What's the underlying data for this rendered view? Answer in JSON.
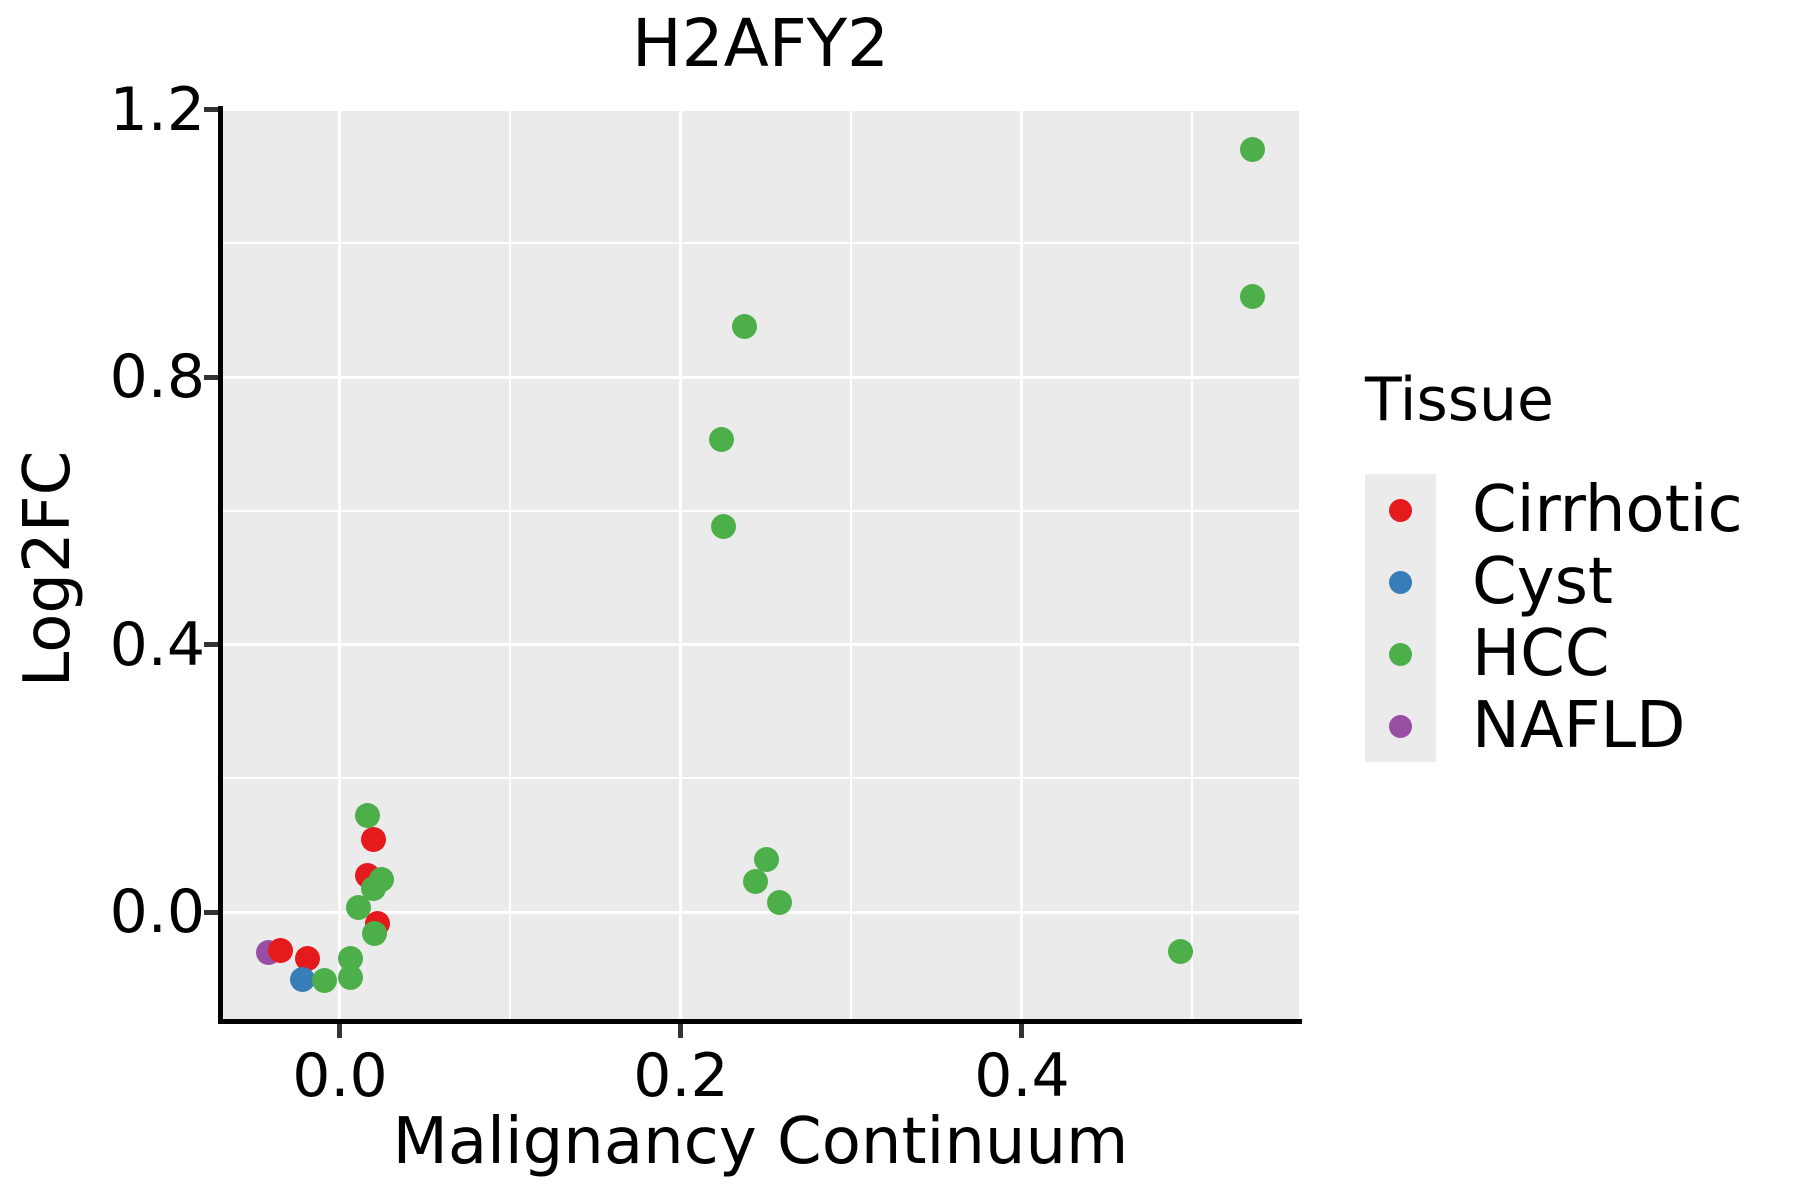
{
  "title": "H2AFY2",
  "chart_data": {
    "type": "scatter",
    "title": "H2AFY2",
    "xlabel": "Malignancy Continuum",
    "ylabel": "Log2FC",
    "xlim": [
      -0.0692,
      0.5625
    ],
    "ylim": [
      -0.1615,
      1.1993
    ],
    "x_major_ticks": [
      0.0,
      0.2,
      0.4
    ],
    "x_minor_ticks": [
      0.1,
      0.3,
      0.5
    ],
    "y_major_ticks": [
      0.0,
      0.4,
      0.8,
      1.2
    ],
    "y_minor_ticks": [
      0.2,
      0.6,
      1.0
    ],
    "grid": true,
    "panel_background": "#EBEBEB",
    "grid_color": "#FFFFFF",
    "legend_position": "right",
    "legend_title": "Tissue",
    "series": [
      {
        "name": "NAFLD",
        "color": "#984EA3",
        "points": [
          [
            -0.042,
            -0.061
          ]
        ]
      },
      {
        "name": "Cirrhotic",
        "color": "#E41A1C",
        "points": [
          [
            -0.035,
            -0.058
          ],
          [
            -0.019,
            -0.069
          ],
          [
            0.0195,
            0.109
          ],
          [
            0.016,
            0.055
          ],
          [
            0.022,
            -0.017
          ]
        ]
      },
      {
        "name": "Cyst",
        "color": "#377EB8",
        "points": [
          [
            -0.022,
            -0.101
          ]
        ]
      },
      {
        "name": "HCC",
        "color": "#4DAF4A",
        "points": [
          [
            0.535,
            1.14
          ],
          [
            0.535,
            0.921
          ],
          [
            0.237,
            0.876
          ],
          [
            0.224,
            0.706
          ],
          [
            0.225,
            0.577
          ],
          [
            0.25,
            0.078
          ],
          [
            0.244,
            0.045
          ],
          [
            0.258,
            0.014
          ],
          [
            0.493,
            -0.059
          ],
          [
            0.016,
            0.144
          ],
          [
            0.0245,
            0.048
          ],
          [
            0.0195,
            0.035
          ],
          [
            0.011,
            0.006
          ],
          [
            0.0205,
            -0.032
          ],
          [
            0.006,
            -0.07
          ],
          [
            0.006,
            -0.098
          ],
          [
            -0.009,
            -0.102
          ]
        ]
      }
    ]
  },
  "legend": {
    "title": "Tissue",
    "items": [
      {
        "label": "Cirrhotic",
        "color": "#E41A1C"
      },
      {
        "label": "Cyst",
        "color": "#377EB8"
      },
      {
        "label": "HCC",
        "color": "#4DAF4A"
      },
      {
        "label": "NAFLD",
        "color": "#984EA3"
      }
    ]
  }
}
